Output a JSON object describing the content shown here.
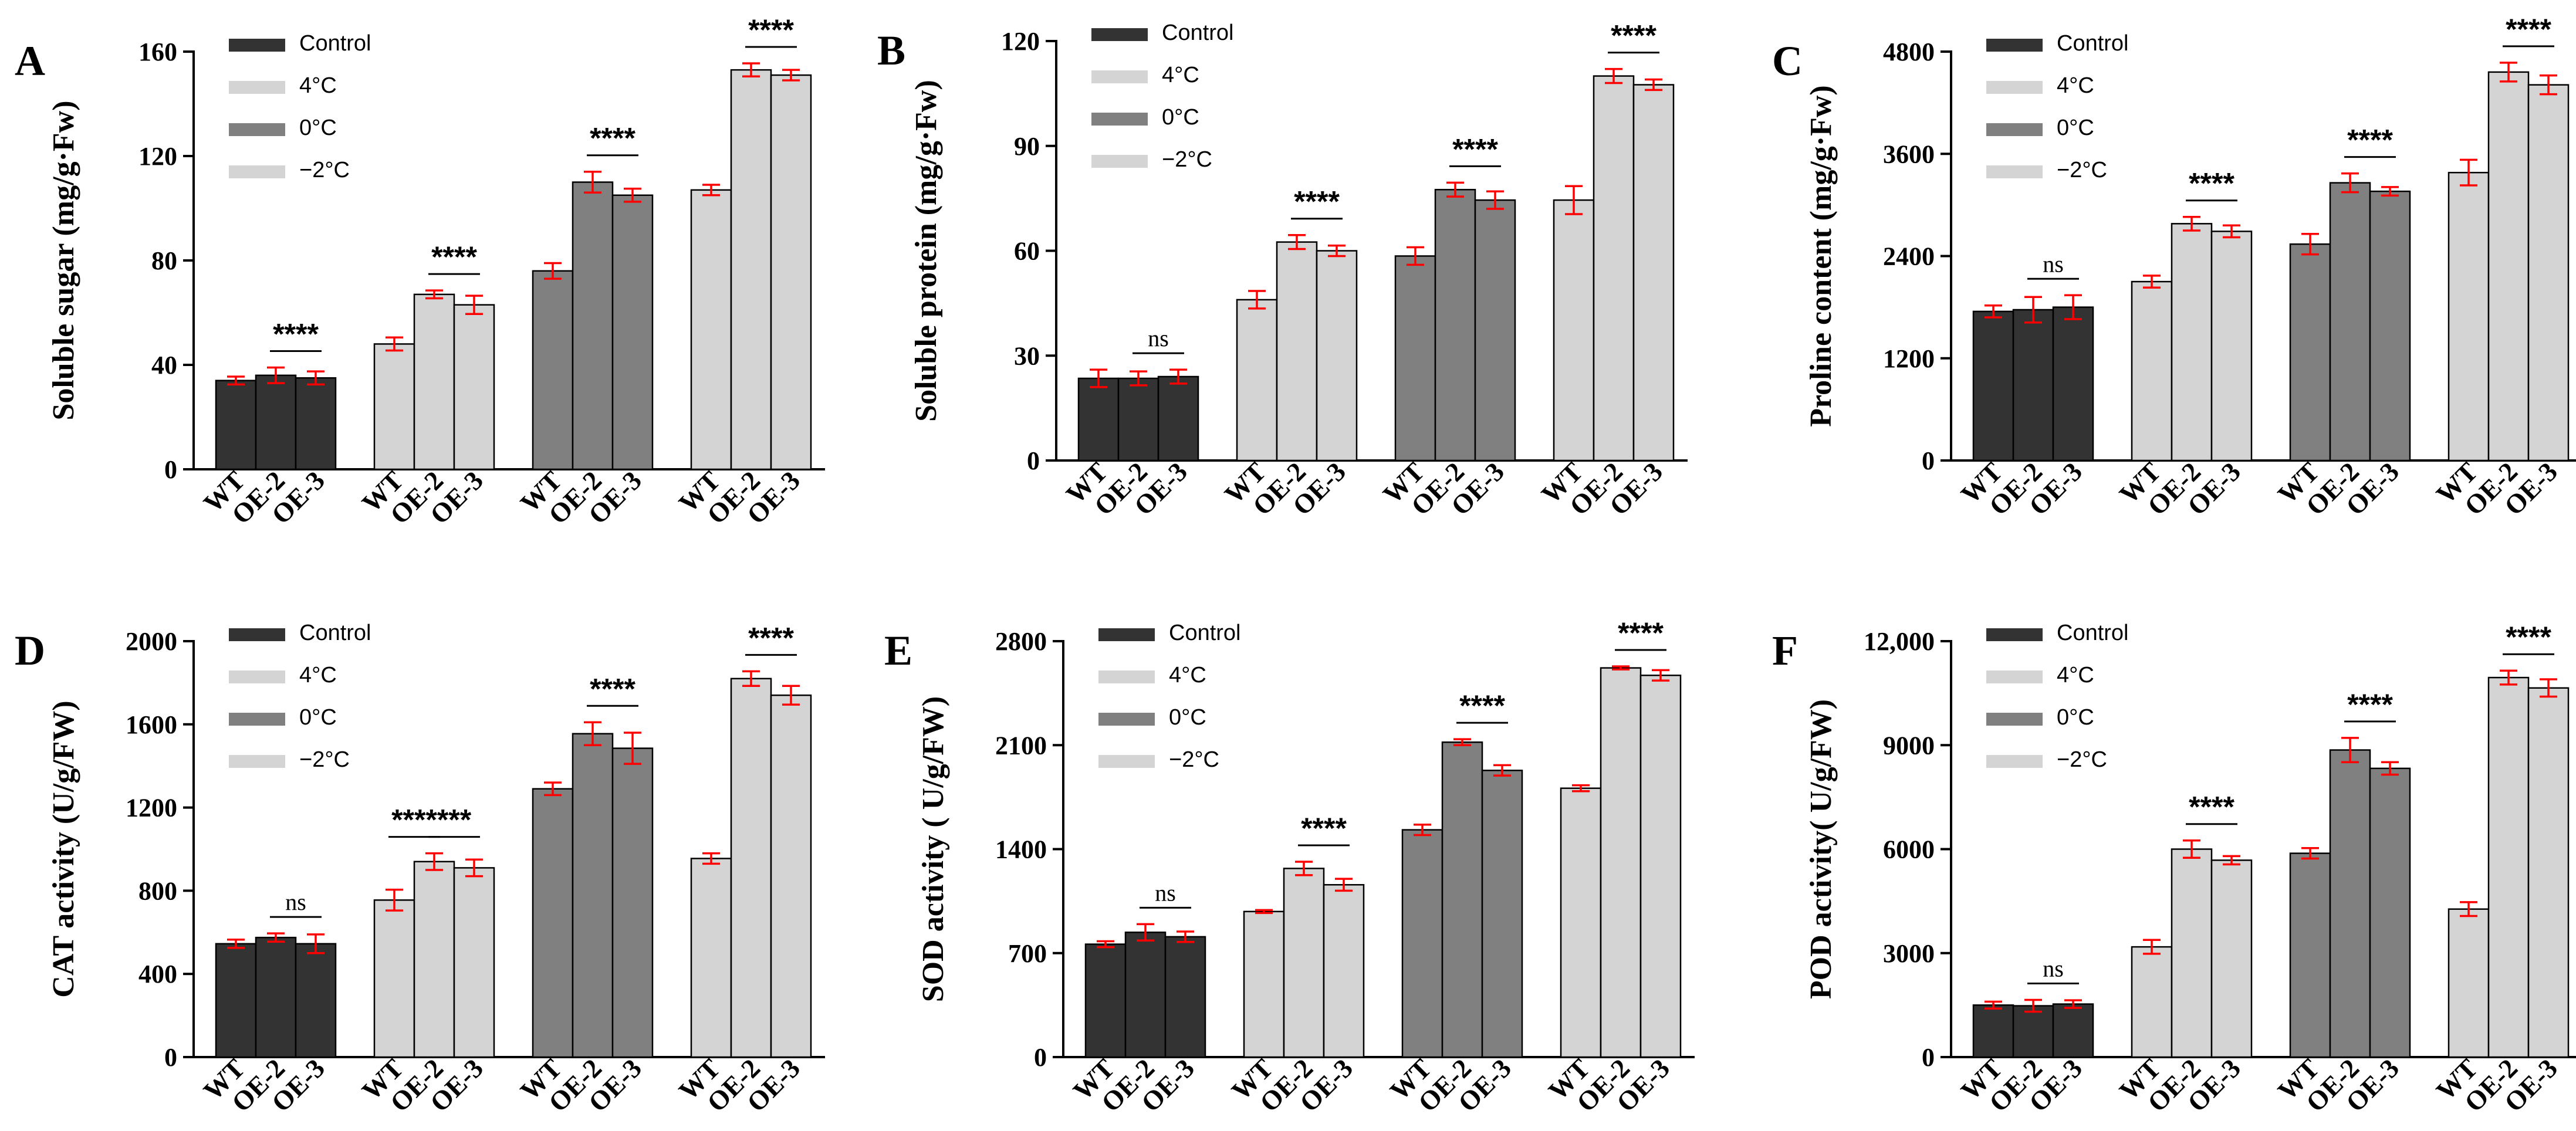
{
  "colors": {
    "control": "#333333",
    "c4": "#d4d4d4",
    "c0": "#808080",
    "cm2": "#d4d4d4",
    "error": "#ff0000",
    "axis": "#000000"
  },
  "legend": [
    "Control",
    "4°C",
    "0°C",
    "−2°C"
  ],
  "genotypes": [
    "WT",
    "OE-2",
    "OE-3"
  ],
  "chart_data": [
    {
      "panel": "A",
      "type": "bar",
      "ylabel": "Soluble sugar (mg/g·Fw)",
      "ylim": [
        0,
        160
      ],
      "yticks": [
        0,
        40,
        80,
        120,
        160
      ],
      "ytick_labels": [
        "0",
        "40",
        "80",
        "120",
        "160"
      ],
      "categories": [
        "WT",
        "OE-2",
        "OE-3"
      ],
      "series": [
        {
          "name": "Control",
          "values": [
            34,
            36,
            35
          ],
          "errors": [
            1.5,
            3,
            2.5
          ],
          "sig": "****",
          "sig_from": 1
        },
        {
          "name": "4°C",
          "values": [
            48,
            67,
            63
          ],
          "errors": [
            2.5,
            1.5,
            3.5
          ],
          "sig": "****",
          "sig_from": 1
        },
        {
          "name": "0°C",
          "values": [
            76,
            110,
            105
          ],
          "errors": [
            3,
            4,
            2.5
          ],
          "sig": "****",
          "sig_from": 1
        },
        {
          "name": "−2°C",
          "values": [
            107,
            153,
            151
          ],
          "errors": [
            2,
            2.5,
            2
          ],
          "sig": "****",
          "sig_from": 1
        }
      ]
    },
    {
      "panel": "B",
      "type": "bar",
      "ylabel": "Soluble protein (mg/g·Fw)",
      "ylim": [
        0,
        120
      ],
      "yticks": [
        0,
        30,
        60,
        90,
        120
      ],
      "ytick_labels": [
        "0",
        "30",
        "60",
        "90",
        "120"
      ],
      "categories": [
        "WT",
        "OE-2",
        "OE-3"
      ],
      "series": [
        {
          "name": "Control",
          "values": [
            23.5,
            23.5,
            24
          ],
          "errors": [
            2.5,
            2,
            2
          ],
          "sig": "ns",
          "sig_from": 1
        },
        {
          "name": "4°C",
          "values": [
            46,
            62.5,
            60
          ],
          "errors": [
            2.5,
            2,
            1.5
          ],
          "sig": "****",
          "sig_from": 1
        },
        {
          "name": "0°C",
          "values": [
            58.5,
            77.5,
            74.5
          ],
          "errors": [
            2.5,
            2,
            2.5
          ],
          "sig": "****",
          "sig_from": 1
        },
        {
          "name": "−2°C",
          "values": [
            74.5,
            110,
            107.5
          ],
          "errors": [
            4,
            2,
            1.5
          ],
          "sig": "****",
          "sig_from": 1
        }
      ]
    },
    {
      "panel": "C",
      "type": "bar",
      "ylabel": "Proline content (mg/g·Fw)",
      "ylim": [
        0,
        4800
      ],
      "yticks": [
        0,
        1200,
        2400,
        3600,
        4800
      ],
      "ytick_labels": [
        "0",
        "1200",
        "2400",
        "3600",
        "4800"
      ],
      "categories": [
        "WT",
        "OE-2",
        "OE-3"
      ],
      "series": [
        {
          "name": "Control",
          "values": [
            1750,
            1770,
            1800
          ],
          "errors": [
            70,
            150,
            140
          ],
          "sig": "ns",
          "sig_from": 1
        },
        {
          "name": "4°C",
          "values": [
            2100,
            2780,
            2690
          ],
          "errors": [
            70,
            80,
            70
          ],
          "sig": "****",
          "sig_from": 1
        },
        {
          "name": "0°C",
          "values": [
            2540,
            3260,
            3160
          ],
          "errors": [
            120,
            110,
            50
          ],
          "sig": "****",
          "sig_from": 1
        },
        {
          "name": "−2°C",
          "values": [
            3380,
            4560,
            4410
          ],
          "errors": [
            150,
            110,
            110
          ],
          "sig": "****",
          "sig_from": 1
        }
      ]
    },
    {
      "panel": "D",
      "type": "bar",
      "ylabel": "CAT activity (U/g/FW)",
      "ylim": [
        0,
        2000
      ],
      "yticks": [
        0,
        400,
        800,
        1200,
        1600,
        2000
      ],
      "ytick_labels": [
        "0",
        "400",
        "800",
        "1200",
        "1600",
        "2000"
      ],
      "categories": [
        "WT",
        "OE-2",
        "OE-3"
      ],
      "series": [
        {
          "name": "Control",
          "values": [
            545,
            575,
            545
          ],
          "errors": [
            20,
            20,
            45
          ],
          "sig": "ns",
          "sig_from": 1
        },
        {
          "name": "4°C",
          "values": [
            755,
            940,
            910
          ],
          "errors": [
            50,
            40,
            40
          ],
          "sig": "****",
          "sig_from": 0,
          "sig2": "***",
          "sig2_from": 1
        },
        {
          "name": "0°C",
          "values": [
            1290,
            1555,
            1485
          ],
          "errors": [
            30,
            55,
            75
          ],
          "sig": "****",
          "sig_from": 1
        },
        {
          "name": "−2°C",
          "values": [
            955,
            1820,
            1740
          ],
          "errors": [
            25,
            35,
            45
          ],
          "sig": "****",
          "sig_from": 1
        }
      ]
    },
    {
      "panel": "E",
      "type": "bar",
      "ylabel": "SOD activity ( U/g/FW)",
      "ylim": [
        0,
        2800
      ],
      "yticks": [
        0,
        700,
        1400,
        2100,
        2800
      ],
      "ytick_labels": [
        "0",
        "700",
        "1400",
        "2100",
        "2800"
      ],
      "categories": [
        "WT",
        "OE-2",
        "OE-3"
      ],
      "series": [
        {
          "name": "Control",
          "values": [
            760,
            840,
            810
          ],
          "errors": [
            20,
            55,
            35
          ],
          "sig": "ns",
          "sig_from": 1
        },
        {
          "name": "4°C",
          "values": [
            980,
            1270,
            1160
          ],
          "errors": [
            10,
            45,
            40
          ],
          "sig": "****",
          "sig_from": 1
        },
        {
          "name": "0°C",
          "values": [
            1530,
            2120,
            1930
          ],
          "errors": [
            35,
            20,
            35
          ],
          "sig": "****",
          "sig_from": 1
        },
        {
          "name": "−2°C",
          "values": [
            1810,
            2620,
            2570
          ],
          "errors": [
            20,
            10,
            35
          ],
          "sig": "****",
          "sig_from": 1
        }
      ]
    },
    {
      "panel": "F",
      "type": "bar",
      "ylabel": "POD activity( U/g/FW)",
      "ylim": [
        0,
        12000
      ],
      "yticks": [
        0,
        3000,
        6000,
        9000,
        12000
      ],
      "ytick_labels": [
        "0",
        "3000",
        "6000",
        "9000",
        "12,000"
      ],
      "categories": [
        "WT",
        "OE-2",
        "OE-3"
      ],
      "series": [
        {
          "name": "Control",
          "values": [
            1500,
            1480,
            1530
          ],
          "errors": [
            100,
            170,
            110
          ],
          "sig": "ns",
          "sig_from": 1
        },
        {
          "name": "4°C",
          "values": [
            3180,
            6000,
            5680
          ],
          "errors": [
            200,
            250,
            120
          ],
          "sig": "****",
          "sig_from": 1
        },
        {
          "name": "0°C",
          "values": [
            5880,
            8860,
            8330
          ],
          "errors": [
            150,
            350,
            180
          ],
          "sig": "****",
          "sig_from": 1
        },
        {
          "name": "−2°C",
          "values": [
            4270,
            10950,
            10650
          ],
          "errors": [
            200,
            200,
            250
          ],
          "sig": "****",
          "sig_from": 1
        }
      ]
    }
  ]
}
